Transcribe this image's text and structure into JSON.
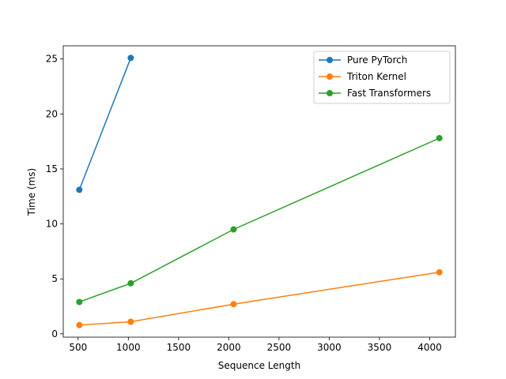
{
  "chart_data": {
    "type": "line",
    "title": "",
    "xlabel": "Sequence Length",
    "ylabel": "Time (ms)",
    "xlim": [
      352,
      4256
    ],
    "ylim": [
      -0.3,
      26.2
    ],
    "xticks": [
      500,
      1000,
      1500,
      2000,
      2500,
      3000,
      3500,
      4000
    ],
    "yticks": [
      0,
      5,
      10,
      15,
      20,
      25
    ],
    "grid": false,
    "legend_position": "top-right",
    "series": [
      {
        "name": "Pure PyTorch",
        "color": "#1f77b4",
        "x": [
          512,
          1024
        ],
        "y": [
          13.1,
          25.1
        ]
      },
      {
        "name": "Triton Kernel",
        "color": "#ff7f0e",
        "x": [
          512,
          1024,
          2048,
          4096
        ],
        "y": [
          0.8,
          1.1,
          2.7,
          5.6
        ]
      },
      {
        "name": "Fast Transformers",
        "color": "#2ca02c",
        "x": [
          512,
          1024,
          2048,
          4096
        ],
        "y": [
          2.9,
          4.6,
          9.5,
          17.8
        ]
      }
    ]
  }
}
